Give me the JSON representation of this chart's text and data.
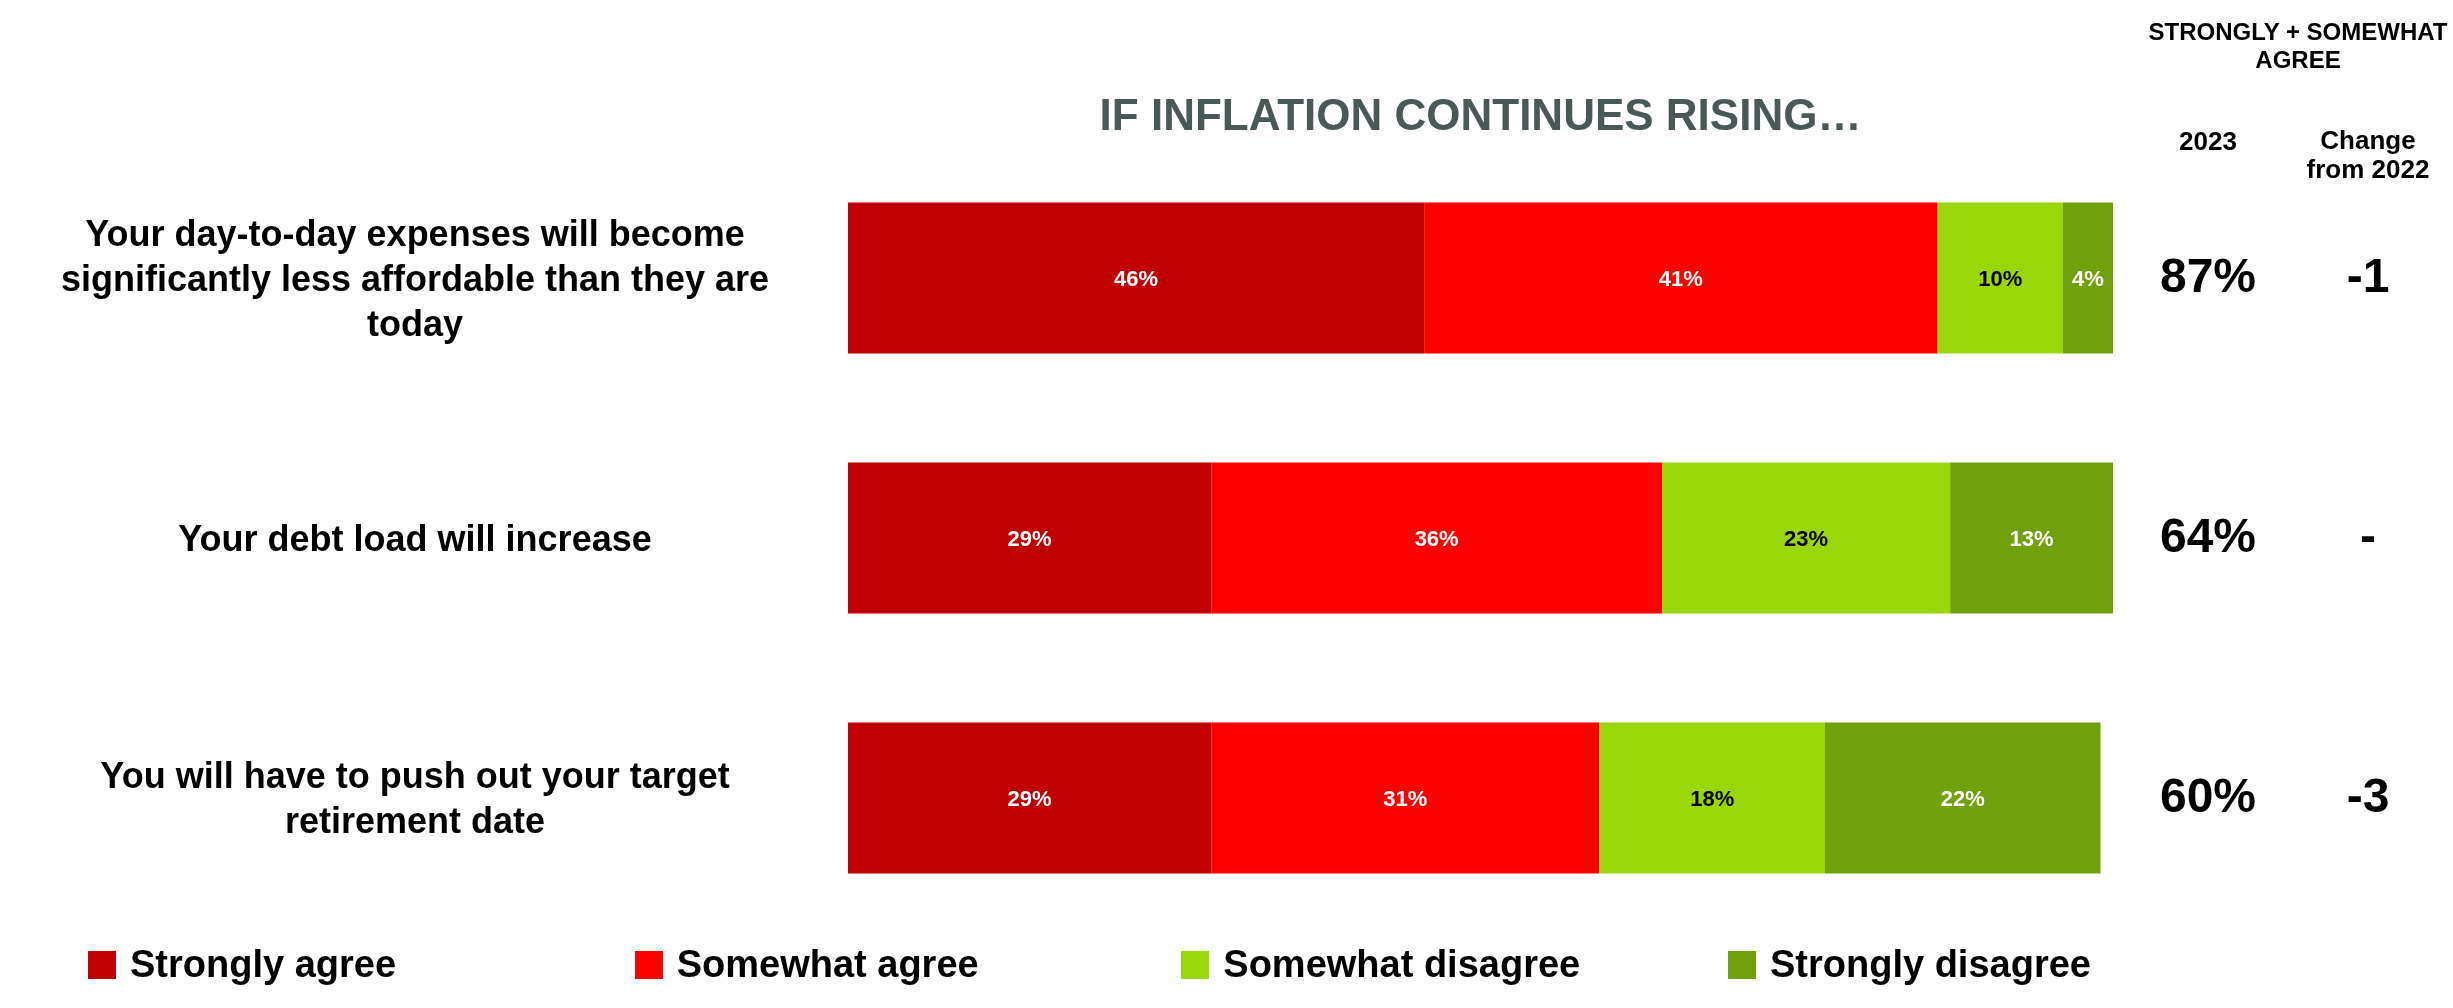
{
  "chart_data": {
    "type": "bar",
    "orientation": "horizontal",
    "stacked": true,
    "title": "IF INFLATION CONTINUES RISING…",
    "categories": [
      "Your day-to-day expenses will become significantly less affordable than they are today",
      "Your debt load will increase",
      "You will have to push out your target retirement date"
    ],
    "series": [
      {
        "name": "Strongly agree",
        "color": "#c00000",
        "values": [
          46,
          29,
          29
        ],
        "value_labels": [
          "46%",
          "29%",
          "29%"
        ]
      },
      {
        "name": "Somewhat agree",
        "color": "#ff0000",
        "values": [
          41,
          36,
          31
        ],
        "value_labels": [
          "41%",
          "36%",
          "31%"
        ]
      },
      {
        "name": "Somewhat disagree",
        "color": "#99d60a",
        "values": [
          10,
          23,
          18
        ],
        "value_labels": [
          "10%",
          "23%",
          "18%"
        ]
      },
      {
        "name": "Strongly disagree",
        "color": "#70a00a",
        "values": [
          4,
          13,
          22
        ],
        "value_labels": [
          "4%",
          "13%",
          "22%"
        ]
      }
    ],
    "legend": "bottom",
    "tick_labels": "y",
    "annotations": [
      "STRONGLY + SOMEWHAT AGREE",
      "2023",
      "Change from 2022",
      "87%",
      "-1",
      "64%",
      "-",
      "60%",
      "-3"
    ]
  }
}
